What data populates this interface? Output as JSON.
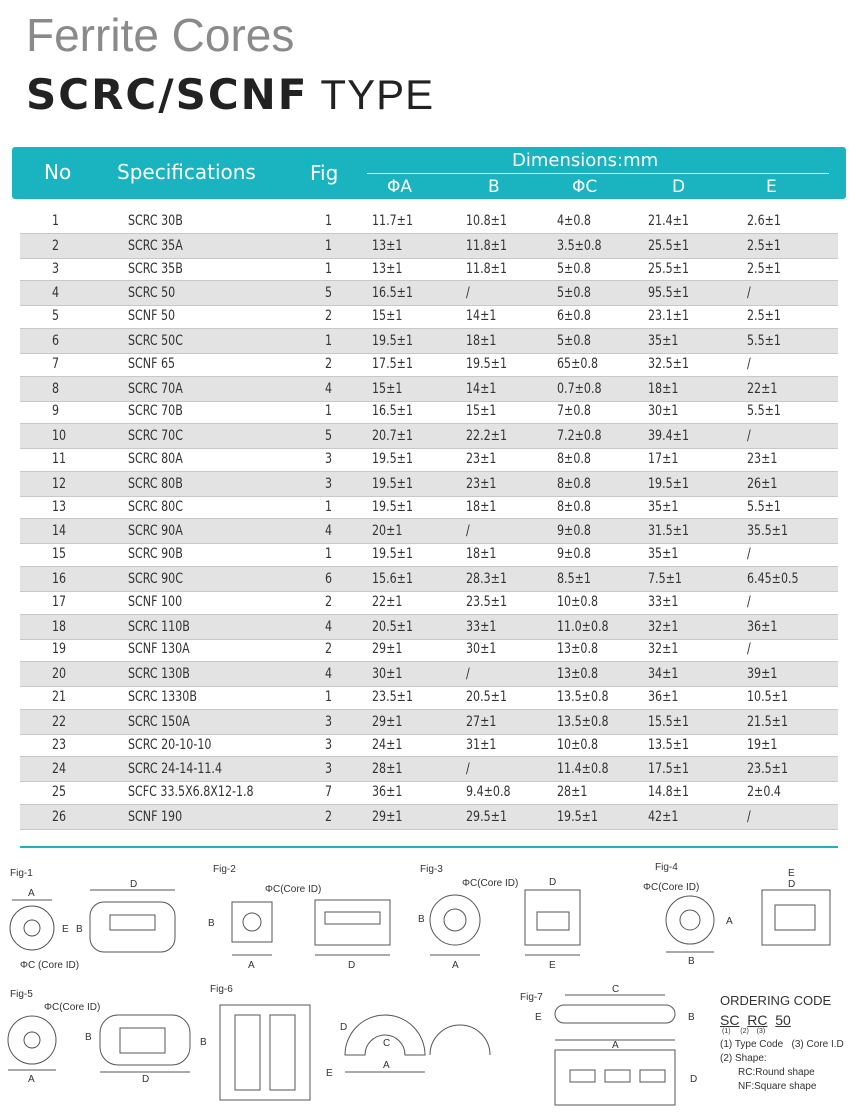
{
  "title": "Ferrite Cores",
  "subtitle_bold": "SCRC/SCNF",
  "subtitle_rest": "TYPE",
  "table": {
    "headers": {
      "no": "No",
      "spec": "Specifications",
      "fig": "Fig",
      "dims": "Dimensions:mm",
      "a": "ΦA",
      "b": "B",
      "c": "ΦC",
      "d": "D",
      "e": "E"
    },
    "rows": [
      [
        "1",
        "SCRC 30B",
        "1",
        "11.7±1",
        "10.8±1",
        "4±0.8",
        "21.4±1",
        "2.6±1"
      ],
      [
        "2",
        "SCRC 35A",
        "1",
        "13±1",
        "11.8±1",
        "3.5±0.8",
        "25.5±1",
        "2.5±1"
      ],
      [
        "3",
        "SCRC 35B",
        "1",
        "13±1",
        "11.8±1",
        "5±0.8",
        "25.5±1",
        "2.5±1"
      ],
      [
        "4",
        "SCRC 50",
        "5",
        "16.5±1",
        "/",
        "5±0.8",
        "95.5±1",
        "/"
      ],
      [
        "5",
        "SCNF 50",
        "2",
        "15±1",
        "14±1",
        "6±0.8",
        "23.1±1",
        "2.5±1"
      ],
      [
        "6",
        "SCRC 50C",
        "1",
        "19.5±1",
        "18±1",
        "5±0.8",
        "35±1",
        "5.5±1"
      ],
      [
        "7",
        "SCNF 65",
        "2",
        "17.5±1",
        "19.5±1",
        "65±0.8",
        "32.5±1",
        "/"
      ],
      [
        "8",
        "SCRC 70A",
        "4",
        "15±1",
        "14±1",
        "0.7±0.8",
        "18±1",
        "22±1"
      ],
      [
        "9",
        "SCRC 70B",
        "1",
        "16.5±1",
        "15±1",
        "7±0.8",
        "30±1",
        "5.5±1"
      ],
      [
        "10",
        "SCRC 70C",
        "5",
        "20.7±1",
        "22.2±1",
        "7.2±0.8",
        "39.4±1",
        "/"
      ],
      [
        "11",
        "SCRC 80A",
        "3",
        "19.5±1",
        "23±1",
        "8±0.8",
        "17±1",
        "23±1"
      ],
      [
        "12",
        "SCRC 80B",
        "3",
        "19.5±1",
        "23±1",
        "8±0.8",
        "19.5±1",
        "26±1"
      ],
      [
        "13",
        "SCRC 80C",
        "1",
        "19.5±1",
        "18±1",
        "8±0.8",
        "35±1",
        "5.5±1"
      ],
      [
        "14",
        "SCRC 90A",
        "4",
        "20±1",
        "/",
        "9±0.8",
        "31.5±1",
        "35.5±1"
      ],
      [
        "15",
        "SCRC 90B",
        "1",
        "19.5±1",
        "18±1",
        "9±0.8",
        "35±1",
        "/"
      ],
      [
        "16",
        "SCRC 90C",
        "6",
        "15.6±1",
        "28.3±1",
        "8.5±1",
        "7.5±1",
        "6.45±0.5"
      ],
      [
        "17",
        "SCNF 100",
        "2",
        "22±1",
        "23.5±1",
        "10±0.8",
        "33±1",
        "/"
      ],
      [
        "18",
        "SCRC 110B",
        "4",
        "20.5±1",
        "33±1",
        "11.0±0.8",
        "32±1",
        "36±1"
      ],
      [
        "19",
        "SCNF 130A",
        "2",
        "29±1",
        "30±1",
        "13±0.8",
        "32±1",
        "/"
      ],
      [
        "20",
        "SCRC 130B",
        "4",
        "30±1",
        "/",
        "13±0.8",
        "34±1",
        "39±1"
      ],
      [
        "21",
        "SCRC 1330B",
        "1",
        "23.5±1",
        "20.5±1",
        "13.5±0.8",
        "36±1",
        "10.5±1"
      ],
      [
        "22",
        "SCRC 150A",
        "3",
        "29±1",
        "27±1",
        "13.5±0.8",
        "15.5±1",
        "21.5±1"
      ],
      [
        "23",
        "SCRC 20-10-10",
        "3",
        "24±1",
        "31±1",
        "10±0.8",
        "13.5±1",
        "19±1"
      ],
      [
        "24",
        "SCRC 24-14-11.4",
        "3",
        "28±1",
        "/",
        "11.4±0.8",
        "17.5±1",
        "23.5±1"
      ],
      [
        "25",
        "SCFC 33.5X6.8X12-1.8",
        "7",
        "36±1",
        "9.4±0.8",
        "28±1",
        "14.8±1",
        "2±0.4"
      ],
      [
        "26",
        "SCNF 190",
        "2",
        "29±1",
        "29.5±1",
        "19.5±1",
        "42±1",
        "/"
      ]
    ]
  },
  "figures": {
    "fig1": "Fig-1",
    "fig2": "Fig-2",
    "fig3": "Fig-3",
    "fig4": "Fig-4",
    "fig5": "Fig-5",
    "fig6": "Fig-6",
    "fig7": "Fig-7",
    "core_id": "ΦC(Core ID)",
    "core_id_spaced": "ΦC  (Core ID)",
    "a": "A",
    "b": "B",
    "c": "C",
    "d": "D",
    "e": "E"
  },
  "ordering": {
    "title": "ORDERING CODE",
    "code": [
      "SC",
      "RC",
      "50"
    ],
    "indices": [
      "(1)",
      "(2)",
      "(3)"
    ],
    "line1a": "(1) Type Code",
    "line1b": "(3) Core I.D",
    "line2": "(2) Shape:",
    "line3": "RC:Round shape",
    "line4": "NF:Square shape"
  },
  "colors": {
    "accent": "#1ab4c0",
    "row_alt": "#e3e3e3"
  }
}
